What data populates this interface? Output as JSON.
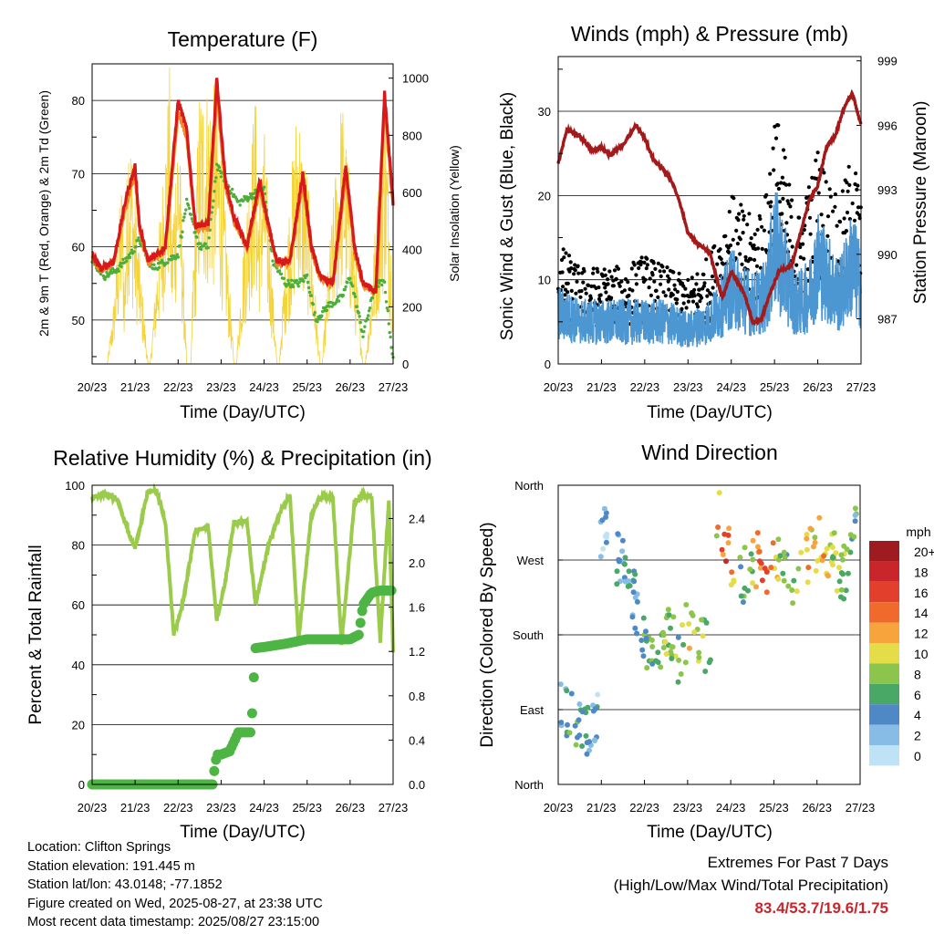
{
  "info": {
    "location": "Location: Clifton Springs",
    "elevation": "Station elevation: 191.445 m",
    "latlon": "Station lat/lon: 43.0148; -77.1852",
    "created": "Figure created on Wed, 2025-08-27, at 23:38 UTC",
    "recent": "Most recent data timestamp: 2025/08/27 23:15:00"
  },
  "extremes": {
    "title": "Extremes For Past 7 Days",
    "subtitle": "(High/Low/Max Wind/Total Precipitation)",
    "values": "83.4/53.7/19.6/1.75"
  },
  "colors": {
    "temp_2m": "#d7191c",
    "temp_9m": "#f08a24",
    "dewpoint": "#4caf3a",
    "solar": "#f5d33b",
    "wind": "#4c96d2",
    "gust": "#000000",
    "pressure": "#a31a1a",
    "rh": "#9acb4a",
    "precip": "#4db544"
  },
  "chart_data": [
    {
      "type": "line",
      "title": "Temperature (F)",
      "xlabel": "Time (Day/UTC)",
      "ylabel": "2m & 9m T (Red, Orange) & 2m Td (Green)",
      "y2label": "Solar Insolation (Yellow)",
      "x_ticks": [
        "20/23",
        "21/23",
        "22/23",
        "23/23",
        "24/23",
        "25/23",
        "26/23",
        "27/23"
      ],
      "ylim": [
        44,
        85
      ],
      "y_ticks": [
        50,
        60,
        70,
        80
      ],
      "y2lim": [
        0,
        1050
      ],
      "y2_ticks": [
        0,
        200,
        400,
        600,
        800,
        1000
      ],
      "series": [
        {
          "name": "2m T",
          "x": [
            0,
            0.2,
            0.5,
            0.8,
            1.0,
            1.1,
            1.3,
            1.7,
            2.0,
            2.2,
            2.4,
            2.7,
            2.9,
            3.1,
            3.3,
            3.6,
            3.9,
            4.1,
            4.3,
            4.6,
            4.9,
            5.1,
            5.3,
            5.6,
            5.9,
            6.1,
            6.3,
            6.6,
            6.8,
            7.0
          ],
          "values": [
            59.0,
            57.0,
            58.0,
            67.0,
            71.0,
            63.0,
            58.0,
            60.0,
            80.0,
            76.0,
            63.0,
            63.0,
            83.0,
            69.0,
            64.0,
            60.0,
            69.0,
            63.0,
            58.0,
            58.0,
            70.0,
            60.0,
            56.0,
            55.0,
            71.0,
            60.0,
            55.0,
            54.0,
            81.0,
            66.0
          ]
        },
        {
          "name": "9m T",
          "x": [
            0,
            0.2,
            0.5,
            0.8,
            1.0,
            1.1,
            1.3,
            1.7,
            2.0,
            2.2,
            2.4,
            2.7,
            2.9,
            3.1,
            3.3,
            3.6,
            3.9,
            4.1,
            4.3,
            4.6,
            4.9,
            5.1,
            5.3,
            5.6,
            5.9,
            6.1,
            6.3,
            6.6,
            6.8,
            7.0
          ],
          "values": [
            58.5,
            56.8,
            57.8,
            66.0,
            70.0,
            62.5,
            57.8,
            59.5,
            78.5,
            75.0,
            62.5,
            62.5,
            81.0,
            68.0,
            63.5,
            59.8,
            68.0,
            62.5,
            57.8,
            57.8,
            69.0,
            59.5,
            55.8,
            54.8,
            70.0,
            59.5,
            54.8,
            53.8,
            79.5,
            65.5
          ]
        },
        {
          "name": "2m Td",
          "x": [
            0,
            0.3,
            0.6,
            0.9,
            1.1,
            1.4,
            1.7,
            2.0,
            2.2,
            2.5,
            2.7,
            2.9,
            3.1,
            3.4,
            3.7,
            4.0,
            4.2,
            4.5,
            4.8,
            5.0,
            5.2,
            5.5,
            5.8,
            6.0,
            6.3,
            6.6,
            6.8,
            7.0
          ],
          "values": [
            58.0,
            56.0,
            57.0,
            59.0,
            61.0,
            57.0,
            58.0,
            59.0,
            66.0,
            60.0,
            60.0,
            71.0,
            69.0,
            66.0,
            67.0,
            68.0,
            58.0,
            55.0,
            55.0,
            56.0,
            50.0,
            52.0,
            53.0,
            56.0,
            48.0,
            55.0,
            55.0,
            44.5
          ]
        },
        {
          "name": "Solar",
          "x": [
            0,
            0.35,
            0.5,
            0.7,
            0.75,
            0.85,
            1.0,
            1.3,
            1.35,
            1.5,
            1.8,
            1.85,
            2.0,
            2.2,
            2.3,
            2.35,
            2.5,
            2.7,
            2.85,
            3.0,
            3.3,
            3.35,
            3.5,
            3.8,
            3.85,
            4.0,
            4.3,
            4.35,
            4.5,
            4.8,
            4.85,
            5.0,
            5.3,
            5.35,
            5.5,
            5.8,
            5.85,
            6.0,
            6.3,
            6.35,
            6.5,
            6.8,
            6.85,
            7.0
          ],
          "values": [
            0,
            0,
            220,
            700,
            300,
            950,
            600,
            0,
            0,
            350,
            1050,
            500,
            960,
            0,
            0,
            380,
            1000,
            1000,
            980,
            800,
            0,
            0,
            400,
            990,
            600,
            850,
            0,
            0,
            420,
            1000,
            820,
            700,
            0,
            0,
            380,
            960,
            900,
            650,
            0,
            0,
            300,
            1000,
            850,
            300
          ]
        }
      ]
    },
    {
      "type": "scatter",
      "title": "Winds (mph) & Pressure (mb)",
      "xlabel": "Time (Day/UTC)",
      "ylabel": "Sonic Wind & Gust (Blue, Black)",
      "y2label": "Station Pressure (Maroon)",
      "x_ticks": [
        "20/23",
        "21/23",
        "22/23",
        "23/23",
        "24/23",
        "25/23",
        "26/23",
        "27/23"
      ],
      "ylim": [
        0,
        36.5
      ],
      "y_ticks": [
        0,
        10,
        20,
        30
      ],
      "y2lim": [
        984.9,
        999.2
      ],
      "y2_ticks": [
        987,
        990,
        993,
        996,
        999
      ],
      "series": [
        {
          "name": "Wind",
          "x": [
            0,
            0.5,
            1.0,
            1.5,
            2.0,
            2.5,
            3.0,
            3.5,
            3.8,
            4.0,
            4.5,
            4.8,
            5.0,
            5.5,
            5.8,
            6.0,
            6.5,
            6.8,
            7.0
          ],
          "values": [
            6,
            5,
            5,
            5,
            5,
            5,
            4,
            5,
            7,
            9,
            7,
            8,
            14,
            7,
            8,
            12,
            8,
            12,
            9
          ]
        },
        {
          "name": "Gust",
          "x": [
            0,
            0.5,
            1.0,
            1.5,
            2.0,
            2.5,
            3.0,
            3.5,
            3.8,
            4.0,
            4.5,
            4.8,
            5.0,
            5.5,
            5.8,
            6.0,
            6.5,
            6.8,
            7.0
          ],
          "values": [
            10,
            8,
            8,
            8,
            9,
            8,
            7,
            9,
            12,
            14,
            12,
            14,
            22,
            12,
            15,
            18,
            13,
            18,
            14
          ]
        },
        {
          "name": "Pressure",
          "x": [
            0,
            0.2,
            0.5,
            0.8,
            1.0,
            1.2,
            1.5,
            1.8,
            2.0,
            2.2,
            2.4,
            2.6,
            2.8,
            3.0,
            3.2,
            3.5,
            3.7,
            3.8,
            4.0,
            4.3,
            4.5,
            4.7,
            4.9,
            5.1,
            5.4,
            5.6,
            5.8,
            6.0,
            6.2,
            6.4,
            6.6,
            6.8,
            7.0
          ],
          "values": [
            994.2,
            995.8,
            995.5,
            994.8,
            995.0,
            994.6,
            995.1,
            996.0,
            995.4,
            994.4,
            994.0,
            993.5,
            992.5,
            991.0,
            990.5,
            990.1,
            988.6,
            988.0,
            989.2,
            988.2,
            986.8,
            987.0,
            988.2,
            989.2,
            989.5,
            991.0,
            992.5,
            993.2,
            995.0,
            995.5,
            996.8,
            997.5,
            996.0
          ]
        }
      ]
    },
    {
      "type": "line",
      "title": "Relative Humidity (%) & Precipitation (in)",
      "xlabel": "Time (Day/UTC)",
      "ylabel": "Percent & Total Rainfall",
      "x_ticks": [
        "20/23",
        "21/23",
        "22/23",
        "23/23",
        "24/23",
        "25/23",
        "26/23",
        "27/23"
      ],
      "ylim": [
        0,
        100
      ],
      "y_ticks": [
        0,
        20,
        40,
        60,
        80,
        100
      ],
      "y2lim": [
        0,
        2.7
      ],
      "y2_ticks": [
        "0.0",
        "0.4",
        "0.8",
        "1.2",
        "1.6",
        "2.0",
        "2.4"
      ],
      "series": [
        {
          "name": "RH",
          "x": [
            0,
            0.3,
            0.6,
            0.9,
            1.0,
            1.3,
            1.5,
            1.7,
            1.9,
            2.1,
            2.4,
            2.7,
            2.9,
            3.1,
            3.3,
            3.6,
            3.8,
            4.1,
            4.4,
            4.6,
            4.8,
            5.1,
            5.3,
            5.6,
            5.8,
            6.1,
            6.3,
            6.5,
            6.7,
            6.9,
            7.0
          ],
          "values": [
            96,
            97,
            95,
            82,
            79,
            98,
            98,
            88,
            50,
            60,
            85,
            86,
            55,
            68,
            88,
            88,
            60,
            80,
            92,
            97,
            48,
            90,
            96,
            96,
            47,
            94,
            97,
            96,
            48,
            95,
            44
          ]
        },
        {
          "name": "Precip",
          "x": [
            0,
            0.5,
            1.0,
            1.5,
            2.0,
            2.5,
            2.8,
            2.85,
            2.9,
            3.0,
            3.2,
            3.4,
            3.5,
            3.7,
            3.75,
            3.8,
            4.0,
            4.5,
            5.0,
            5.5,
            6.0,
            6.2,
            6.3,
            6.5,
            6.7,
            7.0
          ],
          "values": [
            0,
            0,
            0,
            0,
            0,
            0,
            0,
            0.15,
            0.27,
            0.27,
            0.3,
            0.47,
            0.47,
            0.47,
            0.9,
            1.23,
            1.24,
            1.27,
            1.31,
            1.31,
            1.31,
            1.35,
            1.62,
            1.73,
            1.75,
            1.75
          ]
        }
      ]
    },
    {
      "type": "scatter",
      "title": "Wind Direction",
      "xlabel": "Time (Day/UTC)",
      "ylabel": "Direction (Colored By Speed)",
      "x_ticks": [
        "20/23",
        "21/23",
        "22/23",
        "23/23",
        "24/23",
        "25/23",
        "26/23",
        "27/23"
      ],
      "y_ticks": [
        "North",
        "East",
        "South",
        "West",
        "North"
      ],
      "colorbar_title": "mph",
      "colorbar_labels": [
        "20+",
        "18",
        "16",
        "14",
        "12",
        "10",
        "8",
        "6",
        "4",
        "2",
        "0"
      ],
      "colorbar_colors": [
        "#9e1b1f",
        "#c8262b",
        "#e2402c",
        "#f06a2c",
        "#f7a43c",
        "#e4dd48",
        "#8cc54c",
        "#4aa867",
        "#4e89c6",
        "#86bce6",
        "#bfe3f6"
      ],
      "series": [
        {
          "name": "Direction",
          "x": [
            0.1,
            0.3,
            0.6,
            0.9,
            1.0,
            1.2,
            1.5,
            1.7,
            2.0,
            2.3,
            2.6,
            2.8,
            3.0,
            3.3,
            3.6,
            3.7,
            3.9,
            4.2,
            4.5,
            4.7,
            4.9,
            5.2,
            5.4,
            5.7,
            5.9,
            6.1,
            6.4,
            6.7,
            6.9
          ],
          "values": [
            90,
            80,
            70,
            60,
            320,
            280,
            265,
            240,
            170,
            150,
            190,
            150,
            190,
            180,
            150,
            340,
            290,
            250,
            260,
            280,
            260,
            280,
            245,
            270,
            275,
            300,
            270,
            250,
            320
          ],
          "speed": [
            4,
            6,
            5,
            3,
            2,
            3,
            4,
            4,
            6,
            7,
            8,
            7,
            9,
            8,
            6,
            12,
            16,
            6,
            8,
            15,
            14,
            7,
            6,
            12,
            10,
            13,
            8,
            7,
            5
          ]
        }
      ]
    }
  ]
}
